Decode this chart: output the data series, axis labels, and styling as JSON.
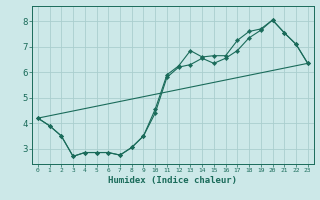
{
  "xlabel": "Humidex (Indice chaleur)",
  "bg_color": "#cce8e8",
  "grid_color": "#aacece",
  "line_color": "#1a6b5a",
  "xlim": [
    -0.5,
    23.5
  ],
  "ylim": [
    2.4,
    8.6
  ],
  "xticks": [
    0,
    1,
    2,
    3,
    4,
    5,
    6,
    7,
    8,
    9,
    10,
    11,
    12,
    13,
    14,
    15,
    16,
    17,
    18,
    19,
    20,
    21,
    22,
    23
  ],
  "yticks": [
    3,
    4,
    5,
    6,
    7,
    8
  ],
  "line1_x": [
    0,
    1,
    2,
    3,
    4,
    5,
    6,
    7,
    8,
    9,
    10,
    11,
    12,
    13,
    14,
    15,
    16,
    17,
    18,
    19,
    20,
    21,
    22,
    23
  ],
  "line1_y": [
    4.2,
    3.9,
    3.5,
    2.7,
    2.85,
    2.85,
    2.85,
    2.75,
    3.05,
    3.5,
    4.4,
    5.8,
    6.2,
    6.3,
    6.55,
    6.35,
    6.55,
    6.85,
    7.35,
    7.65,
    8.05,
    7.55,
    7.1,
    6.35
  ],
  "line2_x": [
    0,
    1,
    2,
    3,
    4,
    5,
    6,
    7,
    8,
    9,
    10,
    11,
    12,
    13,
    14,
    15,
    16,
    17,
    18,
    19,
    20,
    21,
    22,
    23
  ],
  "line2_y": [
    4.2,
    3.9,
    3.5,
    2.7,
    2.85,
    2.85,
    2.85,
    2.75,
    3.05,
    3.5,
    4.55,
    5.9,
    6.25,
    6.85,
    6.6,
    6.65,
    6.65,
    7.25,
    7.6,
    7.7,
    8.05,
    7.55,
    7.1,
    6.35
  ],
  "line3_x": [
    0,
    23
  ],
  "line3_y": [
    4.2,
    6.35
  ]
}
